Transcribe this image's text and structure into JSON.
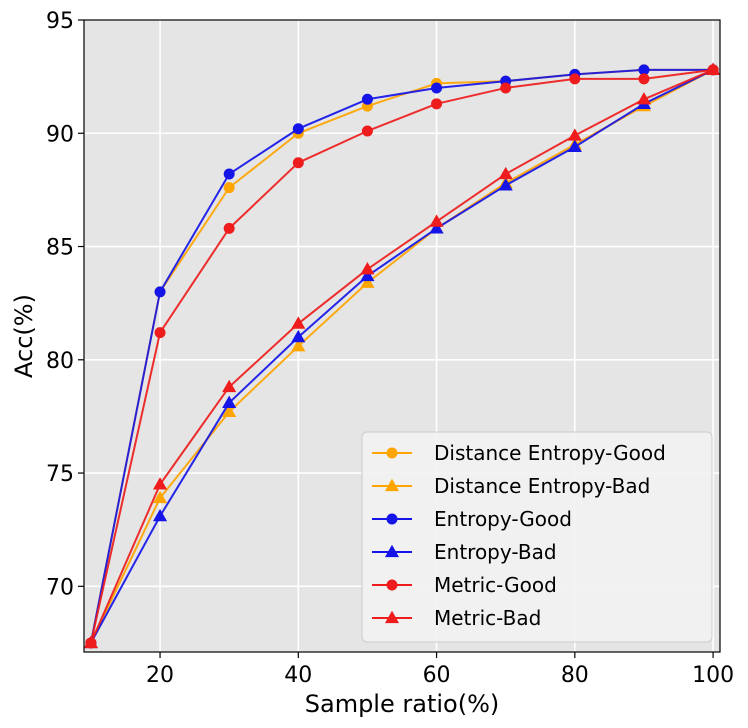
{
  "chart_data": {
    "type": "line",
    "title": "",
    "xlabel": "Sample ratio(%)",
    "ylabel": "Acc(%)",
    "xlim": [
      9,
      101
    ],
    "ylim": [
      67.1,
      95
    ],
    "xticks": [
      20,
      40,
      60,
      80,
      100
    ],
    "yticks": [
      70,
      75,
      80,
      85,
      90,
      95
    ],
    "grid": true,
    "legend_position": "lower-right",
    "series": [
      {
        "name": "Distance Entropy-Good",
        "color": "#FFA500",
        "marker": "circle",
        "x": [
          10,
          20,
          30,
          40,
          50,
          60,
          70,
          80,
          90,
          100
        ],
        "y": [
          67.5,
          83.0,
          87.6,
          90.0,
          91.2,
          92.2,
          92.3,
          92.6,
          92.8,
          92.8
        ]
      },
      {
        "name": "Distance Entropy-Bad",
        "color": "#FFA500",
        "marker": "triangle",
        "x": [
          10,
          20,
          30,
          40,
          50,
          60,
          70,
          80,
          90,
          100
        ],
        "y": [
          67.5,
          73.9,
          77.7,
          80.6,
          83.4,
          85.8,
          87.8,
          89.5,
          91.2,
          92.8
        ]
      },
      {
        "name": "Entropy-Good",
        "color": "#1515E8",
        "marker": "circle",
        "x": [
          10,
          20,
          30,
          40,
          50,
          60,
          70,
          80,
          90,
          100
        ],
        "y": [
          67.5,
          83.0,
          88.2,
          90.2,
          91.5,
          92.0,
          92.3,
          92.6,
          92.8,
          92.8
        ]
      },
      {
        "name": "Entropy-Bad",
        "color": "#1515E8",
        "marker": "triangle",
        "x": [
          10,
          20,
          30,
          40,
          50,
          60,
          70,
          80,
          90,
          100
        ],
        "y": [
          67.5,
          73.1,
          78.1,
          81.0,
          83.7,
          85.8,
          87.7,
          89.4,
          91.3,
          92.8
        ]
      },
      {
        "name": "Metric-Good",
        "color": "#EE1C1C",
        "marker": "circle",
        "x": [
          10,
          20,
          30,
          40,
          50,
          60,
          70,
          80,
          90,
          100
        ],
        "y": [
          67.5,
          81.2,
          85.8,
          88.7,
          90.1,
          91.3,
          92.0,
          92.4,
          92.4,
          92.8
        ]
      },
      {
        "name": "Metric-Bad",
        "color": "#EE1C1C",
        "marker": "triangle",
        "x": [
          10,
          20,
          30,
          40,
          50,
          60,
          70,
          80,
          90,
          100
        ],
        "y": [
          67.5,
          74.5,
          78.8,
          81.6,
          84.0,
          86.1,
          88.2,
          89.9,
          91.5,
          92.8
        ]
      }
    ]
  }
}
